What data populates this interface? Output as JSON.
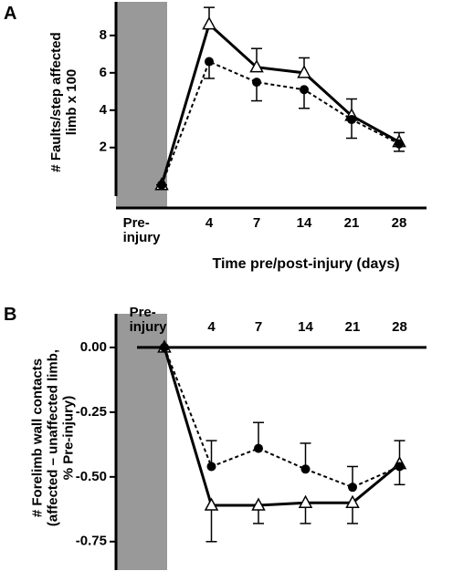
{
  "chart_data": [
    {
      "type": "line",
      "panel": "A",
      "ylabel": "# Faults/step affected\nlimb x 100",
      "xlabel": "Time pre/post-injury (days)",
      "categories": [
        "Pre-\ninjury",
        "4",
        "7",
        "14",
        "21",
        "28"
      ],
      "ylim": [
        -0.6,
        9.8
      ],
      "yticks": [
        2,
        4,
        6,
        8
      ],
      "series": [
        {
          "color": "#000000",
          "dashed": false,
          "marker": "triangle-open",
          "error_direction": "up",
          "values": [
            0,
            8.6,
            6.3,
            6.0,
            3.7,
            2.3
          ],
          "errors": [
            0,
            0.9,
            1.0,
            0.8,
            0.9,
            0.5
          ]
        },
        {
          "color": "#000000",
          "dashed": true,
          "marker": "circle",
          "error_direction": "down",
          "values": [
            0,
            6.6,
            5.5,
            5.1,
            3.5,
            2.2
          ],
          "errors": [
            0,
            0.9,
            1.0,
            1.0,
            1.0,
            0.4
          ]
        }
      ]
    },
    {
      "type": "line",
      "panel": "B",
      "ylabel": "# Forelimb wall contacts\n(affected – unaffected limb,\n% Pre-injury)",
      "categories": [
        "Pre-\ninjury",
        "4",
        "7",
        "14",
        "21",
        "28"
      ],
      "ylim": [
        -0.86,
        0.13
      ],
      "yticks": [
        {
          "value": 0,
          "label": "0.00"
        },
        -0.25,
        {
          "value": -0.5,
          "label": "-0.50"
        },
        -0.75
      ],
      "series": [
        {
          "color": "#000000",
          "dashed": false,
          "marker": "triangle-open",
          "error_direction": "down",
          "values": [
            0,
            -0.61,
            -0.61,
            -0.6,
            -0.6,
            -0.45
          ],
          "errors": [
            0,
            0.14,
            0.07,
            0.08,
            0.08,
            0.08
          ]
        },
        {
          "color": "#000000",
          "dashed": true,
          "marker": "circle",
          "error_direction": "up",
          "values": [
            0,
            -0.46,
            -0.39,
            -0.47,
            -0.54,
            -0.46
          ],
          "errors": [
            0,
            0.1,
            0.1,
            0.1,
            0.08,
            0.1
          ]
        }
      ]
    }
  ]
}
